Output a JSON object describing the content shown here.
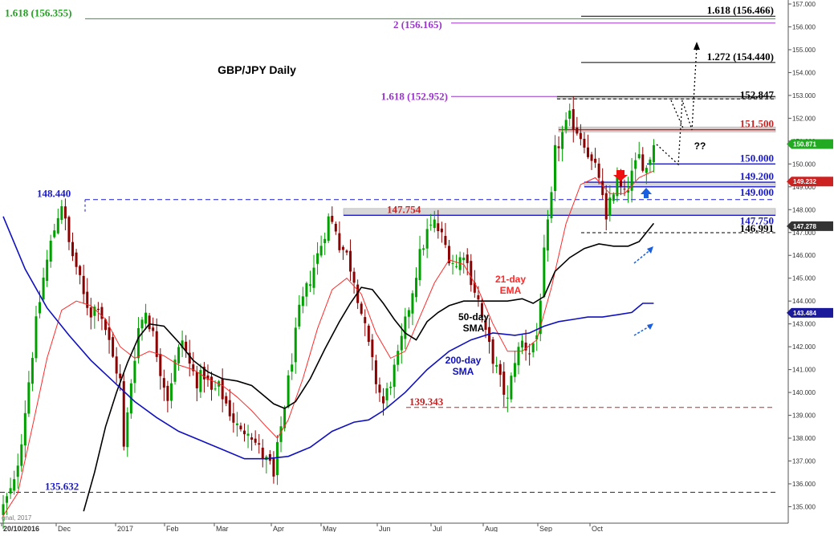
{
  "colors": {
    "background": "#ffffff",
    "axis": "#555555",
    "candle_up": "#00a000",
    "candle_down": "#8b0000",
    "ema21": "#ff2a2a",
    "sma50": "#000000",
    "sma200": "#1010c0",
    "fib_green": "#22a022",
    "fib_purple": "#9933cc",
    "support_blue": "#1a1acc",
    "resistance_red": "#cc2222",
    "zone_grey": "#d8d8d8",
    "price_tag": "#22aa22",
    "tag_red": "#cc2222",
    "tag_blue": "#1a1a9a",
    "tag_dark": "#333333",
    "arrow_red": "#ee1111",
    "arrow_blue": "#1a5fe0"
  },
  "chart_data": {
    "type": "candlestick",
    "title": "GBP/JPY Daily",
    "ylim": [
      134.7,
      157.0
    ],
    "y_ticks": [
      "135.000",
      "136.000",
      "137.000",
      "138.000",
      "139.000",
      "140.000",
      "141.000",
      "142.000",
      "143.000",
      "144.000",
      "145.000",
      "146.000",
      "147.000",
      "148.000",
      "149.000",
      "150.000",
      "151.000",
      "152.000",
      "153.000",
      "154.000",
      "155.000",
      "156.000",
      "157.000"
    ],
    "x_labels": [
      "20/10/2016",
      "Dec",
      "2017",
      "Feb",
      "Mar",
      "Apr",
      "May",
      "Jun",
      "Jul",
      "Aug",
      "Sep",
      "Oct"
    ],
    "watermark": "gnal, 2017",
    "close_path": [
      [
        0,
        135.0
      ],
      [
        3,
        136.0
      ],
      [
        5,
        138.0
      ],
      [
        7,
        140.5
      ],
      [
        9,
        143.0
      ],
      [
        11,
        145.0
      ],
      [
        13,
        146.5
      ],
      [
        15,
        147.8
      ],
      [
        16,
        148.3
      ],
      [
        18,
        146.5
      ],
      [
        20,
        145.5
      ],
      [
        22,
        144.2
      ],
      [
        24,
        143.5
      ],
      [
        26,
        143.9
      ],
      [
        28,
        142.8
      ],
      [
        30,
        141.5
      ],
      [
        32,
        140.5
      ],
      [
        33,
        137.5
      ],
      [
        35,
        140.5
      ],
      [
        37,
        142.8
      ],
      [
        39,
        143.6
      ],
      [
        41,
        142.5
      ],
      [
        43,
        141.0
      ],
      [
        45,
        139.8
      ],
      [
        47,
        141.3
      ],
      [
        49,
        142.3
      ],
      [
        51,
        141.2
      ],
      [
        53,
        140.5
      ],
      [
        55,
        140.8
      ],
      [
        57,
        140.0
      ],
      [
        59,
        140.2
      ],
      [
        61,
        139.5
      ],
      [
        63,
        138.8
      ],
      [
        65,
        138.2
      ],
      [
        67,
        138.5
      ],
      [
        69,
        137.8
      ],
      [
        71,
        137.2
      ],
      [
        73,
        136.8
      ],
      [
        74,
        136.2
      ],
      [
        75,
        137.5
      ],
      [
        77,
        139.5
      ],
      [
        79,
        141.5
      ],
      [
        81,
        143.5
      ],
      [
        83,
        144.5
      ],
      [
        85,
        145.5
      ],
      [
        87,
        146.5
      ],
      [
        89,
        147.6
      ],
      [
        91,
        147.2
      ],
      [
        92,
        146.5
      ],
      [
        94,
        146.0
      ],
      [
        96,
        145.0
      ],
      [
        98,
        143.5
      ],
      [
        100,
        142.0
      ],
      [
        102,
        140.5
      ],
      [
        104,
        139.5
      ],
      [
        106,
        140.5
      ],
      [
        108,
        141.5
      ],
      [
        110,
        143.0
      ],
      [
        112,
        144.5
      ],
      [
        114,
        146.0
      ],
      [
        116,
        147.0
      ],
      [
        118,
        147.4
      ],
      [
        120,
        146.8
      ],
      [
        122,
        146.0
      ],
      [
        124,
        145.5
      ],
      [
        126,
        146.2
      ],
      [
        128,
        145.0
      ],
      [
        130,
        144.0
      ],
      [
        132,
        142.5
      ],
      [
        134,
        141.5
      ],
      [
        136,
        140.5
      ],
      [
        138,
        139.6
      ],
      [
        140,
        141.5
      ],
      [
        142,
        142.2
      ],
      [
        144,
        141.8
      ],
      [
        146,
        142.5
      ],
      [
        148,
        146.0
      ],
      [
        150,
        148.5
      ],
      [
        151,
        150.5
      ],
      [
        153,
        151.3
      ],
      [
        155,
        152.0
      ],
      [
        157,
        151.5
      ],
      [
        159,
        151.0
      ],
      [
        161,
        150.0
      ],
      [
        163,
        149.5
      ],
      [
        165,
        147.3
      ],
      [
        166,
        148.5
      ],
      [
        168,
        149.2
      ],
      [
        170,
        148.6
      ],
      [
        172,
        149.5
      ],
      [
        174,
        150.3
      ],
      [
        176,
        149.8
      ],
      [
        178,
        150.9
      ]
    ],
    "series": [
      {
        "name": "21-day EMA",
        "points": [
          [
            0,
            134.6
          ],
          [
            4,
            135.6
          ],
          [
            8,
            138.5
          ],
          [
            12,
            141.5
          ],
          [
            16,
            143.6
          ],
          [
            20,
            144.0
          ],
          [
            24,
            143.8
          ],
          [
            28,
            143.2
          ],
          [
            32,
            142.0
          ],
          [
            36,
            141.5
          ],
          [
            40,
            141.8
          ],
          [
            44,
            141.6
          ],
          [
            48,
            141.2
          ],
          [
            52,
            141.0
          ],
          [
            56,
            140.6
          ],
          [
            60,
            140.3
          ],
          [
            64,
            139.8
          ],
          [
            68,
            139.2
          ],
          [
            72,
            138.5
          ],
          [
            75,
            138.0
          ],
          [
            78,
            138.8
          ],
          [
            82,
            140.6
          ],
          [
            86,
            142.8
          ],
          [
            90,
            144.5
          ],
          [
            94,
            145.0
          ],
          [
            98,
            144.3
          ],
          [
            102,
            142.6
          ],
          [
            106,
            141.5
          ],
          [
            110,
            141.8
          ],
          [
            114,
            143.3
          ],
          [
            118,
            144.8
          ],
          [
            122,
            145.8
          ],
          [
            126,
            145.6
          ],
          [
            130,
            144.5
          ],
          [
            134,
            143.0
          ],
          [
            138,
            141.8
          ],
          [
            142,
            141.8
          ],
          [
            146,
            142.3
          ],
          [
            150,
            144.6
          ],
          [
            154,
            147.4
          ],
          [
            158,
            149.1
          ],
          [
            162,
            149.4
          ],
          [
            166,
            148.7
          ],
          [
            170,
            148.7
          ],
          [
            174,
            149.4
          ],
          [
            178,
            149.7
          ]
        ]
      },
      {
        "name": "50-day SMA",
        "points": [
          [
            22,
            134.8
          ],
          [
            25,
            136.5
          ],
          [
            28,
            138.5
          ],
          [
            31,
            140.0
          ],
          [
            34,
            141.3
          ],
          [
            37,
            142.4
          ],
          [
            40,
            143.0
          ],
          [
            44,
            142.9
          ],
          [
            48,
            142.2
          ],
          [
            52,
            141.4
          ],
          [
            56,
            140.9
          ],
          [
            60,
            140.6
          ],
          [
            64,
            140.5
          ],
          [
            68,
            140.3
          ],
          [
            71,
            139.9
          ],
          [
            74,
            139.5
          ],
          [
            77,
            139.3
          ],
          [
            80,
            139.6
          ],
          [
            84,
            140.6
          ],
          [
            88,
            141.9
          ],
          [
            92,
            143.1
          ],
          [
            95,
            143.9
          ],
          [
            98,
            144.6
          ],
          [
            101,
            144.5
          ],
          [
            104,
            143.9
          ],
          [
            107,
            143.2
          ],
          [
            110,
            142.6
          ],
          [
            113,
            142.3
          ],
          [
            116,
            143.1
          ],
          [
            119,
            143.5
          ],
          [
            122,
            143.8
          ],
          [
            126,
            144.0
          ],
          [
            130,
            144.0
          ],
          [
            134,
            144.0
          ],
          [
            138,
            144.0
          ],
          [
            142,
            144.1
          ],
          [
            145,
            143.9
          ],
          [
            148,
            144.2
          ],
          [
            151,
            145.3
          ],
          [
            155,
            145.9
          ],
          [
            159,
            146.3
          ],
          [
            163,
            146.5
          ],
          [
            167,
            146.4
          ],
          [
            171,
            146.4
          ],
          [
            174,
            146.6
          ],
          [
            178,
            147.4
          ]
        ]
      },
      {
        "name": "200-day SMA",
        "points": [
          [
            0,
            147.7
          ],
          [
            6,
            145.4
          ],
          [
            12,
            143.7
          ],
          [
            18,
            142.5
          ],
          [
            24,
            141.4
          ],
          [
            30,
            140.5
          ],
          [
            36,
            139.6
          ],
          [
            42,
            138.9
          ],
          [
            48,
            138.3
          ],
          [
            54,
            137.9
          ],
          [
            60,
            137.5
          ],
          [
            66,
            137.1
          ],
          [
            72,
            137.1
          ],
          [
            78,
            137.2
          ],
          [
            84,
            137.6
          ],
          [
            90,
            138.3
          ],
          [
            96,
            138.7
          ],
          [
            100,
            138.8
          ],
          [
            104,
            139.2
          ],
          [
            110,
            140.0
          ],
          [
            116,
            141.0
          ],
          [
            122,
            141.8
          ],
          [
            128,
            142.3
          ],
          [
            134,
            142.6
          ],
          [
            140,
            142.5
          ],
          [
            144,
            142.6
          ],
          [
            148,
            142.9
          ],
          [
            152,
            143.1
          ],
          [
            156,
            143.2
          ],
          [
            160,
            143.3
          ],
          [
            164,
            143.3
          ],
          [
            168,
            143.4
          ],
          [
            172,
            143.5
          ],
          [
            175,
            143.9
          ],
          [
            178,
            143.9
          ]
        ]
      }
    ],
    "levels": [
      {
        "label": "1.618 (156.466)",
        "value": 156.466
      },
      {
        "label": "1.618 (156.355)",
        "value": 156.355
      },
      {
        "label": "2 (156.165)",
        "value": 156.165
      },
      {
        "label": "1.272 (154.440)",
        "value": 154.44
      },
      {
        "label": "1.618 (152.952)",
        "value": 152.952
      },
      {
        "label": "152.847",
        "value": 152.847
      },
      {
        "label": "151.500",
        "value": 151.5
      },
      {
        "label": "150.000",
        "value": 150.0
      },
      {
        "label": "149.200",
        "value": 149.2
      },
      {
        "label": "149.000",
        "value": 149.0
      },
      {
        "label": "148.440",
        "value": 148.44
      },
      {
        "label": "147.754",
        "value": 147.754
      },
      {
        "label": "147.750",
        "value": 147.75
      },
      {
        "label": "146.991",
        "value": 146.991
      },
      {
        "label": "139.343",
        "value": 139.343
      },
      {
        "label": "135.632",
        "value": 135.632
      }
    ],
    "price_tags": [
      {
        "label": "150.871",
        "value": 150.871
      },
      {
        "label": "149.232",
        "value": 149.232
      },
      {
        "label": "147.278",
        "value": 147.278
      },
      {
        "label": "143.484",
        "value": 143.484
      }
    ],
    "annotations": {
      "ema": [
        "21-day",
        "EMA"
      ],
      "sma50": [
        "50-day",
        "SMA"
      ],
      "sma200": [
        "200-day",
        "SMA"
      ],
      "question": "??"
    },
    "grid": false,
    "legend": "none"
  }
}
